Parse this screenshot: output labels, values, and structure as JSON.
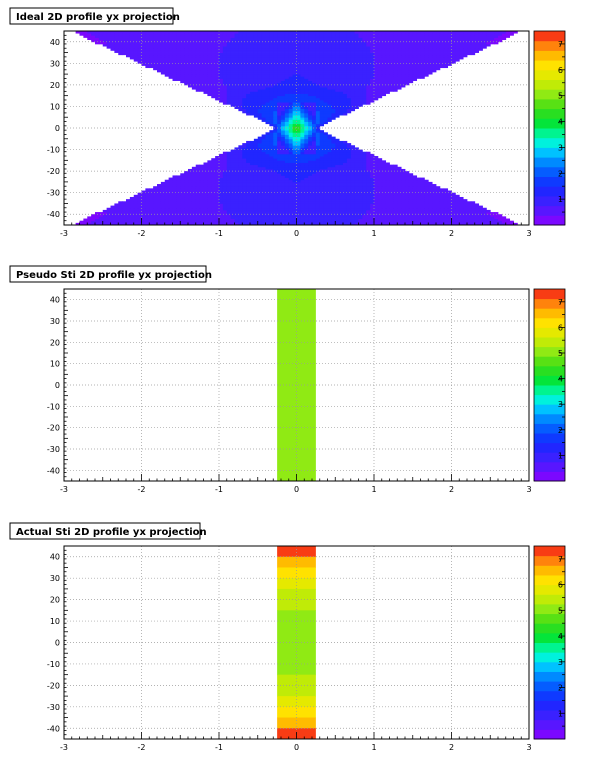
{
  "chart_data": [
    {
      "type": "heatmap",
      "title": "Ideal 2D profile yx projection",
      "xlim": [
        -3,
        3
      ],
      "ylim": [
        -45,
        45
      ],
      "x_ticks": [
        -3,
        -2,
        -1,
        0,
        1,
        2,
        3
      ],
      "y_ticks": [
        -40,
        -30,
        -20,
        -10,
        0,
        10,
        20,
        30,
        40
      ],
      "grid": true,
      "colorbar": {
        "range": [
          0,
          7.5
        ],
        "ticks": [
          1,
          2,
          3,
          4,
          5,
          6,
          7
        ]
      },
      "description_values": {
        "shape": "two opposite wedges (hourglass) widening with |y|",
        "center_value": 4.5,
        "edge_value": 0.3,
        "wedge_halfwidth_at_y0": 0.25,
        "wedge_halfwidth_at_y45": 2.9
      }
    },
    {
      "type": "heatmap",
      "title": "Pseudo Sti 2D profile yx projection",
      "xlim": [
        -3,
        3
      ],
      "ylim": [
        -45,
        45
      ],
      "x_ticks": [
        -3,
        -2,
        -1,
        0,
        1,
        2,
        3
      ],
      "y_ticks": [
        -40,
        -30,
        -20,
        -10,
        0,
        10,
        20,
        30,
        40
      ],
      "grid": true,
      "colorbar": {
        "range": [
          0,
          7.5
        ],
        "ticks": [
          1,
          2,
          3,
          4,
          5,
          6,
          7
        ]
      },
      "cells": [
        {
          "x": [
            -0.25,
            0.25
          ],
          "y": [
            -45,
            45
          ],
          "value": 5.1
        }
      ]
    },
    {
      "type": "heatmap",
      "title": "Actual Sti 2D profile yx projection",
      "xlim": [
        -3,
        3
      ],
      "ylim": [
        -45,
        45
      ],
      "x_ticks": [
        -3,
        -2,
        -1,
        0,
        1,
        2,
        3
      ],
      "y_ticks": [
        -40,
        -30,
        -20,
        -10,
        0,
        10,
        20,
        30,
        40
      ],
      "grid": true,
      "colorbar": {
        "range": [
          0,
          7.5
        ],
        "ticks": [
          1,
          2,
          3,
          4,
          5,
          6,
          7
        ]
      },
      "cells": [
        {
          "x": [
            -0.25,
            0.25
          ],
          "y": [
            40,
            45
          ],
          "value": 7.4
        },
        {
          "x": [
            -0.25,
            0.25
          ],
          "y": [
            35,
            40
          ],
          "value": 6.7
        },
        {
          "x": [
            -0.25,
            0.25
          ],
          "y": [
            30,
            35
          ],
          "value": 6.3
        },
        {
          "x": [
            -0.25,
            0.25
          ],
          "y": [
            25,
            30
          ],
          "value": 5.8
        },
        {
          "x": [
            -0.25,
            0.25
          ],
          "y": [
            15,
            25
          ],
          "value": 5.6
        },
        {
          "x": [
            -0.25,
            0.25
          ],
          "y": [
            -15,
            15
          ],
          "value": 5.1
        },
        {
          "x": [
            -0.25,
            0.25
          ],
          "y": [
            -25,
            -15
          ],
          "value": 5.6
        },
        {
          "x": [
            -0.25,
            0.25
          ],
          "y": [
            -30,
            -25
          ],
          "value": 5.8
        },
        {
          "x": [
            -0.25,
            0.25
          ],
          "y": [
            -35,
            -30
          ],
          "value": 6.3
        },
        {
          "x": [
            -0.25,
            0.25
          ],
          "y": [
            -40,
            -35
          ],
          "value": 6.7
        },
        {
          "x": [
            -0.25,
            0.25
          ],
          "y": [
            -45,
            -40
          ],
          "value": 7.4
        }
      ]
    }
  ]
}
